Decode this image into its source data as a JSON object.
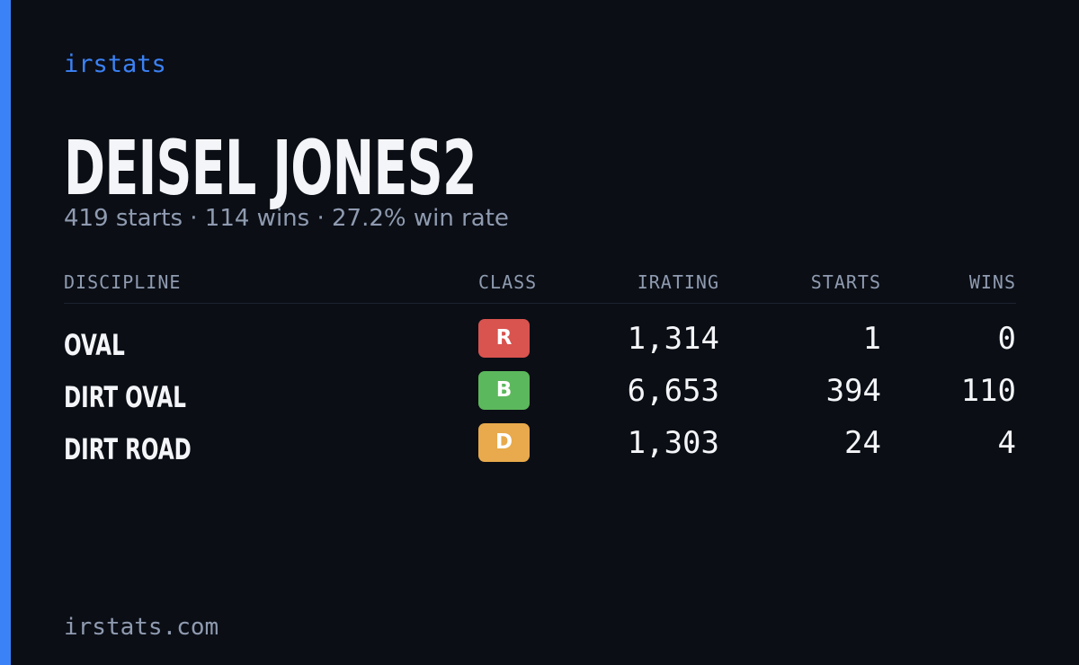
{
  "brand": "irstats",
  "driver": {
    "name": "DEISEL JONES2",
    "summary": "419 starts · 114 wins · 27.2% win rate"
  },
  "table": {
    "headers": [
      "DISCIPLINE",
      "CLASS",
      "IRATING",
      "STARTS",
      "WINS"
    ],
    "rows": [
      [
        "OVAL",
        "R",
        "1,314",
        "1",
        "0"
      ],
      [
        "DIRT OVAL",
        "B",
        "6,653",
        "394",
        "110"
      ],
      [
        "DIRT ROAD",
        "D",
        "1,303",
        "24",
        "4"
      ]
    ],
    "class_colors": {
      "R": "#d9534f",
      "B": "#5cb85c",
      "D": "#e8aa4c"
    }
  },
  "footer": "irstats.com"
}
